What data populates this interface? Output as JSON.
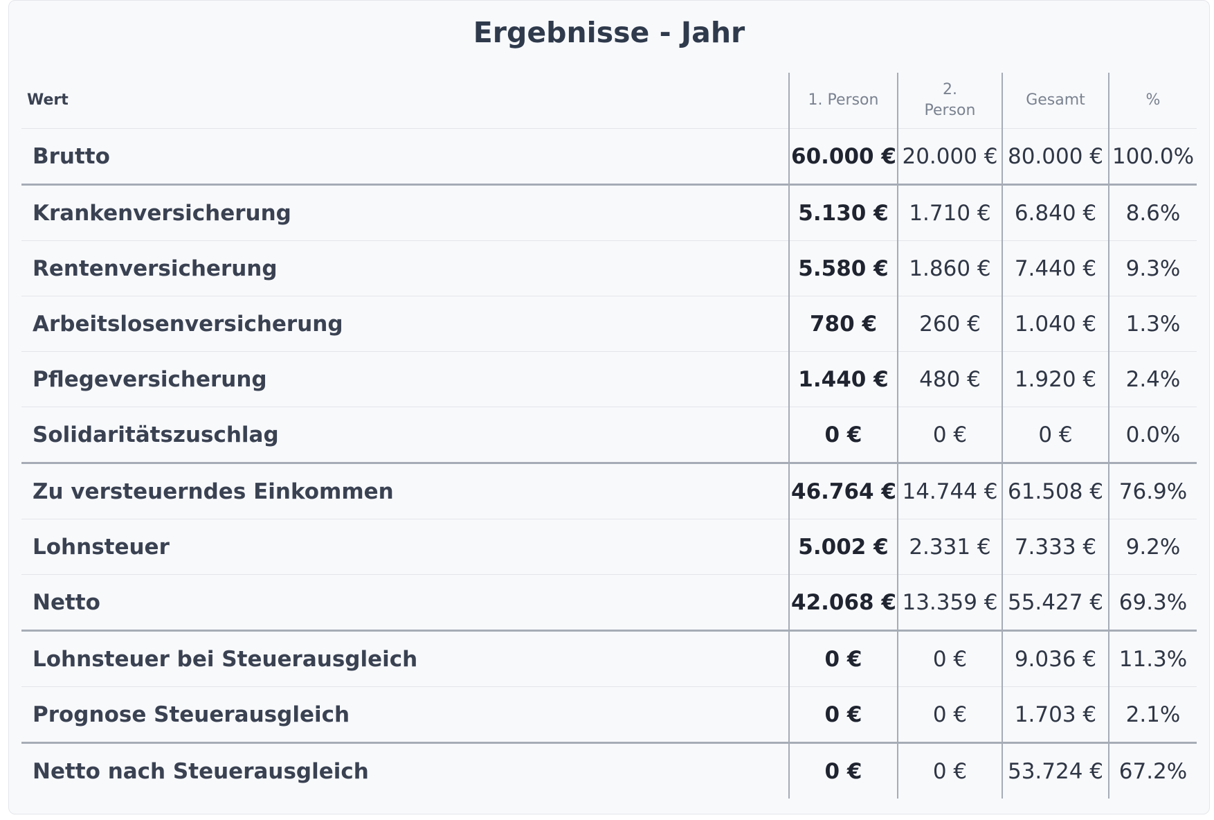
{
  "title": "Ergebnisse - Jahr",
  "columns": {
    "label": "Wert",
    "p1": "1. Person",
    "p2": "2. Person",
    "total": "Gesamt",
    "pct": "%"
  },
  "rows": [
    {
      "label": "Brutto",
      "p1": "60.000 €",
      "p2": "20.000 €",
      "total": "80.000 €",
      "pct": "100.0%"
    },
    {
      "label": "Krankenversicherung",
      "p1": "5.130 €",
      "p2": "1.710 €",
      "total": "6.840 €",
      "pct": "8.6%"
    },
    {
      "label": "Rentenversicherung",
      "p1": "5.580 €",
      "p2": "1.860 €",
      "total": "7.440 €",
      "pct": "9.3%"
    },
    {
      "label": "Arbeitslosenversicherung",
      "p1": "780 €",
      "p2": "260 €",
      "total": "1.040 €",
      "pct": "1.3%"
    },
    {
      "label": "Pflegeversicherung",
      "p1": "1.440 €",
      "p2": "480 €",
      "total": "1.920 €",
      "pct": "2.4%"
    },
    {
      "label": "Solidaritätszuschlag",
      "p1": "0 €",
      "p2": "0 €",
      "total": "0 €",
      "pct": "0.0%"
    },
    {
      "label": "Zu versteuerndes Einkommen",
      "p1": "46.764 €",
      "p2": "14.744 €",
      "total": "61.508 €",
      "pct": "76.9%"
    },
    {
      "label": "Lohnsteuer",
      "p1": "5.002 €",
      "p2": "2.331 €",
      "total": "7.333 €",
      "pct": "9.2%"
    },
    {
      "label": "Netto",
      "p1": "42.068 €",
      "p2": "13.359 €",
      "total": "55.427 €",
      "pct": "69.3%"
    },
    {
      "label": "Lohnsteuer bei Steuerausgleich",
      "p1": "0 €",
      "p2": "0 €",
      "total": "9.036 €",
      "pct": "11.3%"
    },
    {
      "label": "Prognose Steuerausgleich",
      "p1": "0 €",
      "p2": "0 €",
      "total": "1.703 €",
      "pct": "2.1%"
    },
    {
      "label": "Netto nach Steuerausgleich",
      "p1": "0 €",
      "p2": "0 €",
      "total": "53.724 €",
      "pct": "67.2%"
    }
  ]
}
